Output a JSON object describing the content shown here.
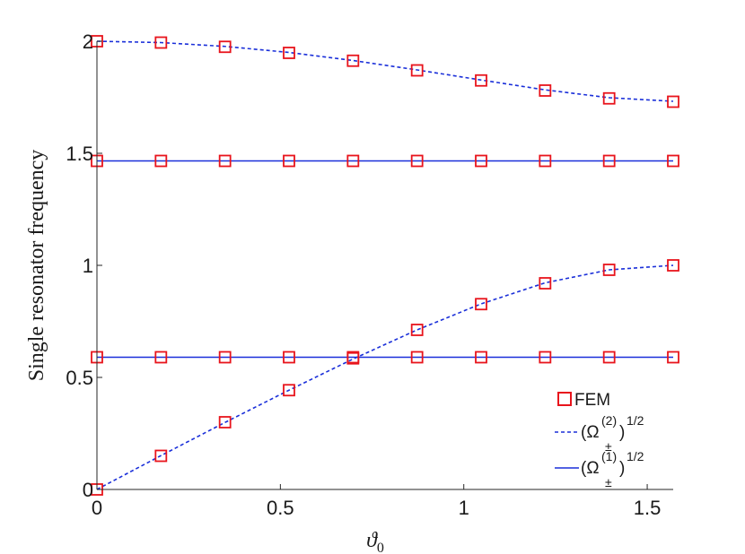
{
  "chart_data": {
    "type": "line",
    "title": "",
    "xlabel": "ϑ",
    "xlabel_subscript": "0",
    "ylabel": "Single resonator frequency",
    "xlim": [
      0,
      1.5708
    ],
    "ylim": [
      0,
      2
    ],
    "xticks": [
      0,
      0.5,
      1,
      1.5
    ],
    "xtick_labels": [
      "0",
      "0.5",
      "1",
      "1.5"
    ],
    "yticks": [
      0,
      0.5,
      1,
      1.5,
      2
    ],
    "ytick_labels": [
      "0",
      "0.5",
      "1",
      "1.5",
      "2"
    ],
    "grid": false,
    "legend_position": "bottom-right",
    "colors": {
      "fem": "#e8141c",
      "analytic": "#1a2fd9",
      "axis": "#262626"
    },
    "legend": {
      "fem": "FEM",
      "omega2": {
        "base": "(Ω",
        "sup": "(2)",
        "sub": "±",
        "close": ")",
        "exp": "1/2"
      },
      "omega1": {
        "base": "(Ω",
        "sup": "(1)",
        "sub": "±",
        "close": ")",
        "exp": "1/2"
      }
    },
    "x": [
      0,
      0.1745,
      0.3491,
      0.5236,
      0.6981,
      0.8727,
      1.0472,
      1.2217,
      1.3963,
      1.5708
    ],
    "series": [
      {
        "line": "dashed",
        "values": [
          2.0,
          1.994,
          1.977,
          1.95,
          1.914,
          1.872,
          1.827,
          1.783,
          1.748,
          1.732
        ]
      },
      {
        "line": "dashed",
        "values": [
          0.0,
          0.151,
          0.299,
          0.443,
          0.582,
          0.712,
          0.828,
          0.922,
          0.98,
          1.0
        ]
      },
      {
        "line": "solid",
        "values": [
          1.466,
          1.466,
          1.466,
          1.466,
          1.466,
          1.466,
          1.466,
          1.466,
          1.466,
          1.466
        ]
      },
      {
        "line": "solid",
        "values": [
          0.59,
          0.59,
          0.59,
          0.59,
          0.59,
          0.59,
          0.59,
          0.59,
          0.59,
          0.59
        ]
      }
    ],
    "fem_markers": [
      {
        "values": [
          2.0,
          1.994,
          1.975,
          1.948,
          1.913,
          1.87,
          1.825,
          1.78,
          1.745,
          1.73
        ]
      },
      {
        "values": [
          0.0,
          0.15,
          0.3,
          0.443,
          0.585,
          0.712,
          0.827,
          0.92,
          0.98,
          1.0
        ]
      },
      {
        "values": [
          1.466,
          1.466,
          1.466,
          1.466,
          1.466,
          1.466,
          1.466,
          1.466,
          1.466,
          1.466
        ]
      },
      {
        "values": [
          0.59,
          0.59,
          0.59,
          0.59,
          0.59,
          0.59,
          0.59,
          0.59,
          0.59,
          0.59
        ]
      }
    ]
  }
}
